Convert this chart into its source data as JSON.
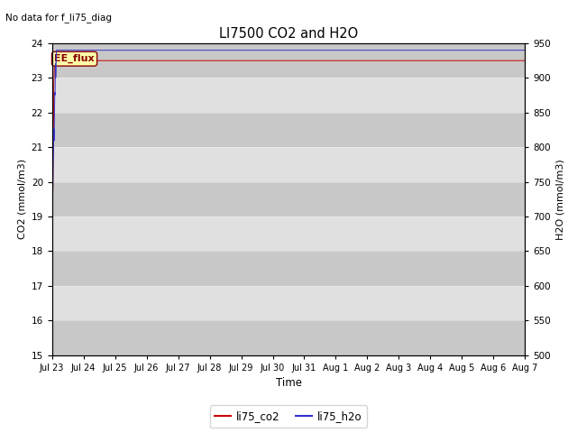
{
  "title": "LI7500 CO2 and H2O",
  "subtitle": "No data for f_li75_diag",
  "xlabel": "Time",
  "ylabel_left": "CO2 (mmol/m3)",
  "ylabel_right": "H2O (mmol/m3)",
  "ylim_left": [
    15.0,
    24.0
  ],
  "ylim_right": [
    500,
    950
  ],
  "yticks_left": [
    15.0,
    16.0,
    17.0,
    18.0,
    19.0,
    20.0,
    21.0,
    22.0,
    23.0,
    24.0
  ],
  "yticks_right": [
    500,
    550,
    600,
    650,
    700,
    750,
    800,
    850,
    900,
    950
  ],
  "color_co2": "#cc0000",
  "color_h2o": "#3333cc",
  "legend_label_co2": "li75_co2",
  "legend_label_h2o": "li75_h2o",
  "annotation_text": "EE_flux",
  "annotation_color": "#880000",
  "annotation_bg": "#ffffaa",
  "band_colors": [
    "#c8c8c8",
    "#e0e0e0"
  ],
  "n_points": 1500
}
